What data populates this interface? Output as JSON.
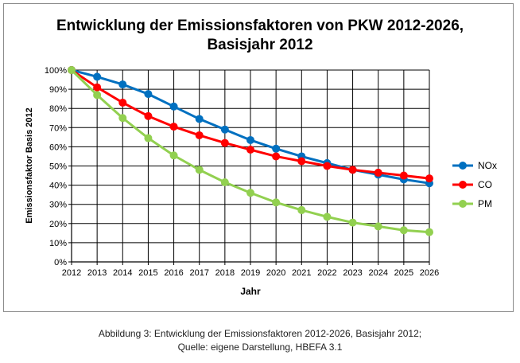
{
  "chart_data": {
    "type": "line",
    "title_lines": [
      "Entwicklung der Emissionsfaktoren von PKW 2012-2026,",
      "Basisjahr 2012"
    ],
    "xlabel": "Jahr",
    "ylabel": "Emissionsfaktor Basis 2012",
    "x": [
      2012,
      2013,
      2014,
      2015,
      2016,
      2017,
      2018,
      2019,
      2020,
      2021,
      2022,
      2023,
      2024,
      2025,
      2026
    ],
    "xtick_labels": [
      "2012",
      "2013",
      "2014",
      "2015",
      "2016",
      "2017",
      "2018",
      "2019",
      "2020",
      "2021",
      "2022",
      "2023",
      "2024",
      "2025",
      "2026"
    ],
    "ylim": [
      0,
      100
    ],
    "ytick_labels": [
      "0%",
      "10%",
      "20%",
      "30%",
      "40%",
      "50%",
      "60%",
      "70%",
      "80%",
      "90%",
      "100%"
    ],
    "ytick_values": [
      0,
      10,
      20,
      30,
      40,
      50,
      60,
      70,
      80,
      90,
      100
    ],
    "grid": true,
    "legend_position": "right",
    "series": [
      {
        "name": "NOx",
        "color": "#0070c0",
        "values": [
          100,
          96.5,
          92.5,
          87.5,
          81,
          74.5,
          69,
          63.5,
          59,
          55,
          51.5,
          48,
          45.5,
          43,
          41
        ]
      },
      {
        "name": "CO",
        "color": "#ff0000",
        "values": [
          100,
          91,
          83,
          76,
          70.5,
          66,
          62,
          58.5,
          55,
          52.5,
          50,
          48,
          46.5,
          45,
          43.5
        ]
      },
      {
        "name": "PM",
        "color": "#92d050",
        "values": [
          100,
          87,
          75,
          64.5,
          55.5,
          48,
          41.5,
          36,
          31,
          27,
          23.5,
          20.5,
          18.5,
          16.5,
          15.5
        ]
      }
    ]
  },
  "caption": {
    "line1": "Abbildung 3: Entwicklung der Emissionsfaktoren 2012-2026, Basisjahr 2012;",
    "line2": "Quelle: eigene Darstellung, HBEFA 3.1"
  }
}
